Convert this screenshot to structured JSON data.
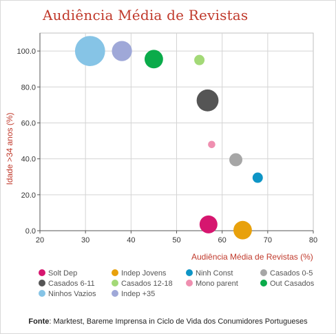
{
  "chart_data": {
    "type": "bubble",
    "title": "Audiência Média de Revistas",
    "xlabel": "Audiência Média de Revistas  (%)",
    "ylabel": "Idade >34 anos (%)",
    "xlim": [
      20,
      80
    ],
    "ylim": [
      0,
      110
    ],
    "x_ticks": [
      "20",
      "30",
      "40",
      "50",
      "60",
      "70",
      "80"
    ],
    "y_ticks": [
      "0.0",
      "20.0",
      "40.0",
      "60.0",
      "80.0",
      "100.0"
    ],
    "grid": true,
    "legend_position": "bottom",
    "series": [
      {
        "name": "Solt Dep",
        "color": "#d6166f",
        "x": 57,
        "y": 3.5,
        "size": 3.0
      },
      {
        "name": "Indep Jovens",
        "color": "#e8a10c",
        "x": 64.5,
        "y": 0.3,
        "size": 3.2
      },
      {
        "name": "Ninh Const",
        "color": "#0e95c6",
        "x": 67.8,
        "y": 29.5,
        "size": 1.0
      },
      {
        "name": "Casados 0-5",
        "color": "#a6a6a6",
        "x": 63,
        "y": 39.5,
        "size": 1.6
      },
      {
        "name": "Casados 6-11",
        "color": "#555555",
        "x": 56.8,
        "y": 72.5,
        "size": 4.5
      },
      {
        "name": "Casados  12-18",
        "color": "#a3d977",
        "x": 55,
        "y": 95,
        "size": 1.0
      },
      {
        "name": "Mono parent",
        "color": "#ef8fb0",
        "x": 57.7,
        "y": 48,
        "size": 0.5
      },
      {
        "name": "Out Casados",
        "color": "#0aab4a",
        "x": 45,
        "y": 95.5,
        "size": 3.2
      },
      {
        "name": "Ninhos Vazios",
        "color": "#86c4e6",
        "x": 31,
        "y": 100,
        "size": 8.5
      },
      {
        "name": "Indep +35",
        "color": "#9fa8d8",
        "x": 38,
        "y": 100,
        "size": 3.8
      }
    ]
  },
  "footer": {
    "source_label": "Fonte",
    "source_text": ": Marktest, Bareme Imprensa in Ciclo de Vida dos Conumidores Portugueses"
  }
}
